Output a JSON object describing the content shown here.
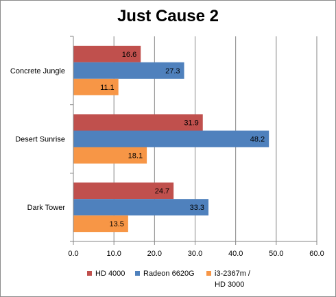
{
  "chart_data": {
    "type": "bar",
    "orientation": "horizontal",
    "title": "Just Cause 2",
    "categories": [
      "Concrete Jungle",
      "Desert Sunrise",
      "Dark Tower"
    ],
    "series": [
      {
        "name": "HD 4000",
        "color": "#c0504d",
        "values": [
          16.6,
          31.9,
          24.7
        ]
      },
      {
        "name": "Radeon 6620G",
        "color": "#4f81bd",
        "values": [
          27.3,
          48.2,
          33.3
        ]
      },
      {
        "name": "i3-2367m /\nHD 3000",
        "color": "#f79646",
        "values": [
          11.1,
          18.1,
          13.5
        ]
      }
    ],
    "xlim": [
      0,
      60
    ],
    "xticks": [
      "0.0",
      "10.0",
      "20.0",
      "30.0",
      "40.0",
      "50.0",
      "60.0"
    ],
    "grid": true,
    "legend_position": "bottom"
  }
}
